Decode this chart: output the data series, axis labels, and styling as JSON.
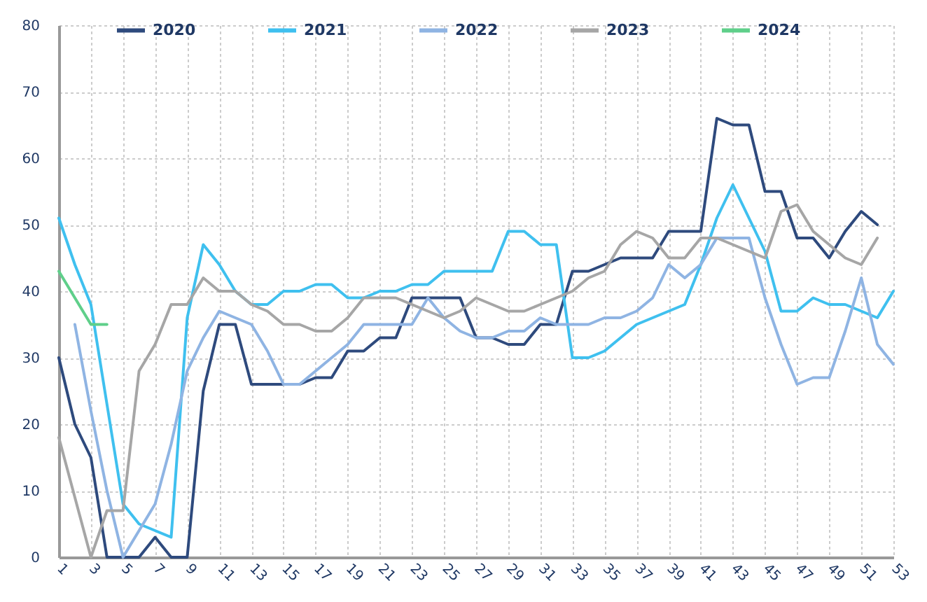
{
  "chart_data": {
    "type": "line",
    "x": [
      1,
      2,
      3,
      4,
      5,
      6,
      7,
      8,
      9,
      10,
      11,
      12,
      13,
      14,
      15,
      16,
      17,
      18,
      19,
      20,
      21,
      22,
      23,
      24,
      25,
      26,
      27,
      28,
      29,
      30,
      31,
      32,
      33,
      34,
      35,
      36,
      37,
      38,
      39,
      40,
      41,
      42,
      43,
      44,
      45,
      46,
      47,
      48,
      49,
      50,
      51,
      52,
      53
    ],
    "xlim": [
      1,
      53
    ],
    "xticks": [
      1,
      3,
      5,
      7,
      9,
      11,
      13,
      15,
      17,
      19,
      21,
      23,
      25,
      27,
      29,
      31,
      33,
      35,
      37,
      39,
      41,
      43,
      45,
      47,
      49,
      51,
      53
    ],
    "ylim": [
      0,
      80
    ],
    "yticks": [
      0,
      10,
      20,
      30,
      40,
      50,
      60,
      70,
      80
    ],
    "grid": true,
    "legend": "top",
    "series": [
      {
        "name": "2020",
        "color": "#2e4a7d",
        "values": [
          30,
          20,
          15,
          0,
          0,
          0,
          3,
          0,
          0,
          25,
          35,
          35,
          26,
          26,
          26,
          26,
          27,
          27,
          31,
          31,
          33,
          33,
          39,
          39,
          39,
          39,
          33,
          33,
          32,
          32,
          35,
          35,
          43,
          43,
          44,
          45,
          45,
          45,
          49,
          49,
          49,
          66,
          65,
          65,
          55,
          55,
          48,
          48,
          45,
          49,
          52,
          50,
          null
        ]
      },
      {
        "name": "2021",
        "color": "#3fc0ef",
        "values": [
          51,
          44,
          38,
          23,
          8,
          5,
          4,
          3,
          36,
          47,
          44,
          40,
          38,
          38,
          40,
          40,
          41,
          41,
          39,
          39,
          40,
          40,
          41,
          41,
          43,
          43,
          43,
          43,
          49,
          49,
          47,
          47,
          30,
          30,
          31,
          33,
          35,
          36,
          37,
          38,
          44,
          51,
          56,
          51,
          46,
          37,
          37,
          39,
          38,
          38,
          37,
          36,
          40
        ]
      },
      {
        "name": "2022",
        "color": "#8fb4e3",
        "values": [
          null,
          35,
          22,
          10,
          0,
          4,
          8,
          17,
          28,
          33,
          37,
          36,
          35,
          31,
          26,
          26,
          28,
          30,
          32,
          35,
          35,
          35,
          35,
          39,
          36,
          34,
          33,
          33,
          34,
          34,
          36,
          35,
          35,
          35,
          36,
          36,
          37,
          39,
          44,
          42,
          44,
          48,
          48,
          48,
          39,
          32,
          26,
          27,
          27,
          34,
          42,
          32,
          29
        ]
      },
      {
        "name": "2023",
        "color": "#a6a6a6",
        "values": [
          18,
          9,
          0,
          7,
          7,
          28,
          32,
          38,
          38,
          42,
          40,
          40,
          38,
          37,
          35,
          35,
          34,
          34,
          36,
          39,
          39,
          39,
          38,
          37,
          36,
          37,
          39,
          38,
          37,
          37,
          38,
          39,
          40,
          42,
          43,
          47,
          49,
          48,
          45,
          45,
          48,
          48,
          47,
          46,
          45,
          52,
          53,
          49,
          47,
          45,
          44,
          48,
          null
        ]
      },
      {
        "name": "2024",
        "color": "#5fcf8a",
        "values": [
          43,
          39,
          35,
          35,
          null,
          null,
          null,
          null,
          null,
          null,
          null,
          null,
          null,
          null,
          null,
          null,
          null,
          null,
          null,
          null,
          null,
          null,
          null,
          null,
          null,
          null,
          null,
          null,
          null,
          null,
          null,
          null,
          null,
          null,
          null,
          null,
          null,
          null,
          null,
          null,
          null,
          null,
          null,
          null,
          null,
          null,
          null,
          null,
          null,
          null,
          null,
          null,
          null
        ]
      }
    ]
  }
}
